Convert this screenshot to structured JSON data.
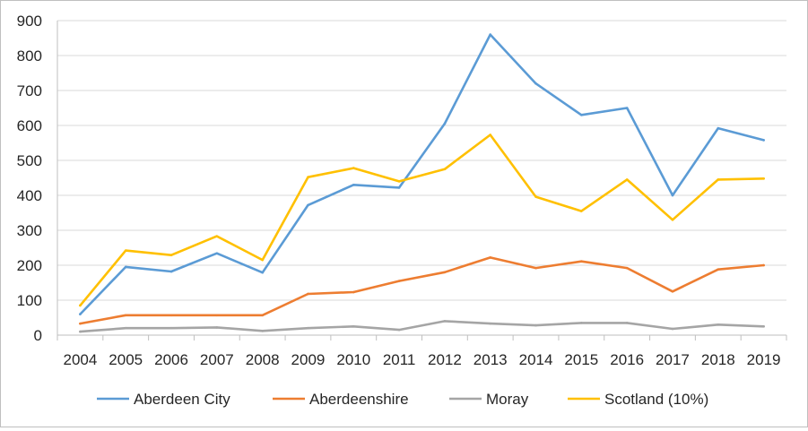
{
  "chart_data": {
    "type": "line",
    "title": "",
    "xlabel": "",
    "ylabel": "",
    "ylim": [
      0,
      900
    ],
    "yticks": [
      0,
      100,
      200,
      300,
      400,
      500,
      600,
      700,
      800,
      900
    ],
    "grid": true,
    "legend_position": "bottom",
    "categories": [
      "2004",
      "2005",
      "2006",
      "2007",
      "2008",
      "2009",
      "2010",
      "2011",
      "2012",
      "2013",
      "2014",
      "2015",
      "2016",
      "2017",
      "2018",
      "2019"
    ],
    "series": [
      {
        "name": "Aberdeen City",
        "color": "#5B9BD5",
        "values": [
          60,
          195,
          182,
          234,
          179,
          372,
          430,
          422,
          605,
          860,
          720,
          630,
          650,
          400,
          592,
          558
        ]
      },
      {
        "name": "Aberdeenshire",
        "color": "#ED7D31",
        "values": [
          33,
          57,
          57,
          57,
          57,
          118,
          123,
          155,
          180,
          222,
          192,
          211,
          192,
          125,
          188,
          200
        ]
      },
      {
        "name": "Moray",
        "color": "#A5A5A5",
        "values": [
          10,
          20,
          20,
          22,
          12,
          20,
          25,
          15,
          40,
          33,
          28,
          35,
          35,
          18,
          30,
          25
        ]
      },
      {
        "name": "Scotland (10%)",
        "color": "#FFC000",
        "values": [
          85,
          242,
          229,
          283,
          215,
          452,
          478,
          440,
          475,
          573,
          396,
          355,
          445,
          330,
          445,
          448
        ]
      }
    ]
  }
}
